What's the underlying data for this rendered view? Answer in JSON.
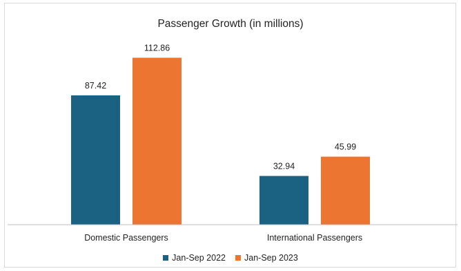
{
  "chart_data": {
    "type": "bar",
    "title": "Passenger Growth (in millions)",
    "categories": [
      "Domestic Passengers",
      "International Passengers"
    ],
    "series": [
      {
        "name": "Jan-Sep 2022",
        "values": [
          87.42,
          32.94
        ],
        "labels": [
          "87.42",
          "32.94"
        ],
        "color": "#1b6182"
      },
      {
        "name": "Jan-Sep 2023",
        "values": [
          112.86,
          45.99
        ],
        "labels": [
          "112.86",
          "45.99"
        ],
        "color": "#ed7532"
      }
    ],
    "ylim": [
      0,
      120
    ],
    "grid": false,
    "legend_position": "bottom"
  }
}
